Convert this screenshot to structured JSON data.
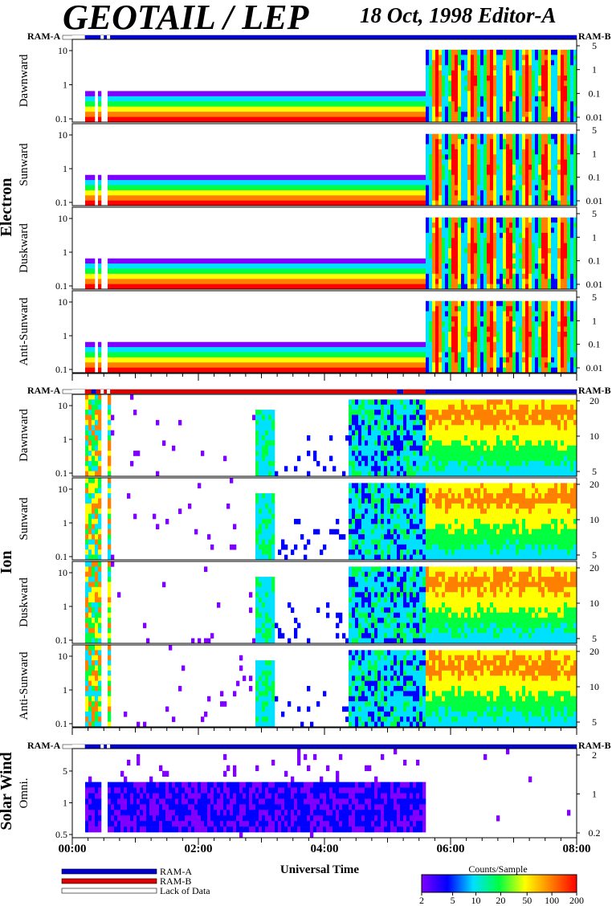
{
  "header": {
    "title": "GEOTAIL / LEP",
    "subtitle": "18 Oct, 1998   Editor-A"
  },
  "chart_data": {
    "type": "heatmap",
    "title": "GEOTAIL / LEP",
    "subtitle": "18 Oct, 1998   Editor-A",
    "xlabel": "Universal Time",
    "xlim_hours": [
      0,
      8
    ],
    "xticks": [
      "00:00",
      "02:00",
      "04:00",
      "06:00",
      "08:00"
    ],
    "mode_bar_labels": {
      "left": "RAM-A",
      "right": "RAM-B"
    },
    "groups": [
      {
        "name": "Electron",
        "left_ticks": [
          "0.1",
          "1",
          "10"
        ],
        "right_ticks": [
          "0.01",
          "0.1",
          "1",
          "5"
        ],
        "panels": [
          "Dawnward",
          "Sunward",
          "Duskward",
          "Anti-Sunward"
        ],
        "mode_bar": [
          {
            "from": 0.0,
            "to": 0.2,
            "mode": "lack"
          },
          {
            "from": 0.2,
            "to": 0.45,
            "mode": "RAM-A"
          },
          {
            "from": 0.45,
            "to": 0.5,
            "mode": "lack"
          },
          {
            "from": 0.5,
            "to": 0.55,
            "mode": "RAM-A"
          },
          {
            "from": 0.55,
            "to": 0.6,
            "mode": "lack"
          },
          {
            "from": 0.6,
            "to": 8.0,
            "mode": "RAM-A"
          }
        ]
      },
      {
        "name": "Ion",
        "left_ticks": [
          "0.1",
          "1",
          "10"
        ],
        "right_ticks": [
          "5",
          "10",
          "20"
        ],
        "panels": [
          "Dawnward",
          "Sunward",
          "Duskward",
          "Anti-Sunward"
        ],
        "mode_bar": [
          {
            "from": 0.0,
            "to": 0.2,
            "mode": "lack"
          },
          {
            "from": 0.2,
            "to": 0.3,
            "mode": "RAM-B"
          },
          {
            "from": 0.3,
            "to": 0.38,
            "mode": "RAM-A"
          },
          {
            "from": 0.38,
            "to": 0.45,
            "mode": "RAM-B"
          },
          {
            "from": 0.45,
            "to": 0.5,
            "mode": "lack"
          },
          {
            "from": 0.5,
            "to": 0.55,
            "mode": "RAM-B"
          },
          {
            "from": 0.55,
            "to": 0.6,
            "mode": "lack"
          },
          {
            "from": 0.6,
            "to": 5.15,
            "mode": "RAM-B"
          },
          {
            "from": 5.15,
            "to": 5.25,
            "mode": "RAM-A"
          },
          {
            "from": 5.25,
            "to": 5.6,
            "mode": "RAM-B"
          },
          {
            "from": 5.6,
            "to": 8.0,
            "mode": "RAM-A"
          }
        ]
      },
      {
        "name": "Solar Wind",
        "left_ticks": [
          "0.5",
          "1",
          "5"
        ],
        "right_ticks": [
          "0.2",
          "1",
          "2"
        ],
        "panels": [
          "Omni."
        ],
        "mode_bar": [
          {
            "from": 0.0,
            "to": 0.2,
            "mode": "lack"
          },
          {
            "from": 0.2,
            "to": 0.45,
            "mode": "RAM-A"
          },
          {
            "from": 0.45,
            "to": 0.5,
            "mode": "lack"
          },
          {
            "from": 0.5,
            "to": 0.55,
            "mode": "RAM-A"
          },
          {
            "from": 0.55,
            "to": 0.6,
            "mode": "lack"
          },
          {
            "from": 0.6,
            "to": 8.0,
            "mode": "RAM-A"
          }
        ]
      }
    ],
    "legend": {
      "entries": [
        {
          "label": "RAM-A",
          "color": "#0000cc"
        },
        {
          "label": "RAM-B",
          "color": "#dd0000"
        },
        {
          "label": "Lack of Data",
          "color": "#ffffff"
        }
      ]
    },
    "colorbar": {
      "label": "Counts/Sample",
      "ticks": [
        "2",
        "5",
        "10",
        "20",
        "50",
        "100",
        "200"
      ],
      "colors": [
        "#8000ff",
        "#0000ff",
        "#00e0ff",
        "#00ff40",
        "#ffff00",
        "#ff8000",
        "#ff0000"
      ]
    }
  }
}
